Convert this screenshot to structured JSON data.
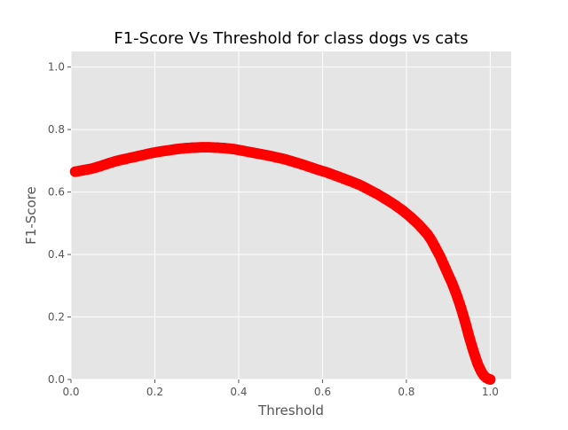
{
  "chart_data": {
    "type": "scatter",
    "title": "F1-Score Vs Threshold for  class dogs vs cats",
    "xlabel": "Threshold",
    "ylabel": "F1-Score",
    "xlim": [
      0.0,
      1.05
    ],
    "ylim": [
      0.0,
      1.05
    ],
    "xticks": [
      "0.0",
      "0.2",
      "0.4",
      "0.6",
      "0.8",
      "1.0"
    ],
    "yticks": [
      "0.0",
      "0.2",
      "0.4",
      "0.6",
      "0.8",
      "1.0"
    ],
    "grid": true,
    "legend": false,
    "series": [
      {
        "color": "#ff0000",
        "x": [
          0.01,
          0.03,
          0.05,
          0.07,
          0.09,
          0.11,
          0.13,
          0.15,
          0.17,
          0.19,
          0.21,
          0.23,
          0.25,
          0.27,
          0.29,
          0.31,
          0.33,
          0.35,
          0.37,
          0.39,
          0.41,
          0.43,
          0.45,
          0.47,
          0.49,
          0.51,
          0.53,
          0.55,
          0.57,
          0.59,
          0.61,
          0.63,
          0.65,
          0.67,
          0.69,
          0.71,
          0.73,
          0.75,
          0.77,
          0.79,
          0.81,
          0.83,
          0.85,
          0.86,
          0.87,
          0.88,
          0.89,
          0.9,
          0.91,
          0.92,
          0.93,
          0.94,
          0.95,
          0.96,
          0.965,
          0.97,
          0.975,
          0.98,
          0.985,
          0.99,
          0.995,
          1.0
        ],
        "y": [
          0.665,
          0.67,
          0.675,
          0.683,
          0.692,
          0.7,
          0.706,
          0.712,
          0.718,
          0.724,
          0.729,
          0.733,
          0.737,
          0.74,
          0.742,
          0.743,
          0.743,
          0.742,
          0.74,
          0.737,
          0.732,
          0.727,
          0.722,
          0.717,
          0.711,
          0.705,
          0.697,
          0.689,
          0.68,
          0.671,
          0.663,
          0.653,
          0.643,
          0.633,
          0.622,
          0.608,
          0.594,
          0.578,
          0.561,
          0.542,
          0.52,
          0.495,
          0.465,
          0.445,
          0.42,
          0.395,
          0.365,
          0.335,
          0.305,
          0.27,
          0.23,
          0.185,
          0.135,
          0.09,
          0.07,
          0.05,
          0.035,
          0.022,
          0.012,
          0.006,
          0.002,
          0.0
        ]
      }
    ]
  }
}
